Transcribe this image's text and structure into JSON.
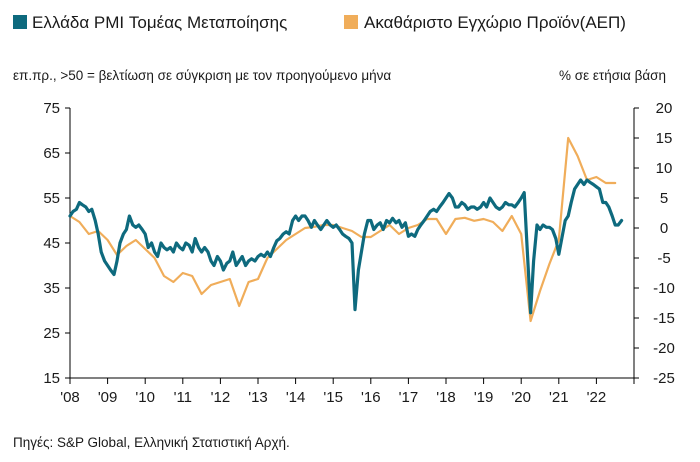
{
  "chart_data": {
    "type": "line",
    "title": "",
    "legend": {
      "placement": "top"
    },
    "grid": false,
    "subtitle_left": "επ.πρ., >50 = βελτίωση σε σύγκριση με τον προηγούμενο μήνα",
    "subtitle_right": "% σε ετήσια βάση",
    "source": "Πηγές: S&P Global, Ελληνική Στατιστική Αρχή.",
    "x_axis": {
      "range": [
        2008.0,
        2023.0
      ],
      "tick_labels": [
        "'08",
        "'09",
        "'10",
        "'11",
        "'12",
        "'13",
        "'14",
        "'15",
        "'16",
        "'17",
        "'18",
        "'19",
        "'20",
        "'21",
        "'22"
      ]
    },
    "y_left": {
      "range": [
        15,
        75
      ],
      "ticks": [
        "75",
        "65",
        "55",
        "45",
        "35",
        "25",
        "15"
      ]
    },
    "y_right": {
      "range": [
        -25,
        20
      ],
      "ticks": [
        "20",
        "15",
        "10",
        "5",
        "0",
        "-5",
        "-10",
        "-15",
        "-20",
        "-25"
      ]
    },
    "series": [
      {
        "name": "Ελλάδα PMI Τομέας Μεταποίησης",
        "axis": "left",
        "color": "#0e6a7e",
        "points": [
          [
            2008.0,
            51
          ],
          [
            2008.08,
            52
          ],
          [
            2008.17,
            52.5
          ],
          [
            2008.25,
            54
          ],
          [
            2008.33,
            53.5
          ],
          [
            2008.42,
            53
          ],
          [
            2008.5,
            52
          ],
          [
            2008.58,
            52.5
          ],
          [
            2008.67,
            50
          ],
          [
            2008.75,
            47
          ],
          [
            2008.83,
            43
          ],
          [
            2008.92,
            41
          ],
          [
            2009.0,
            40
          ],
          [
            2009.08,
            39
          ],
          [
            2009.17,
            38
          ],
          [
            2009.25,
            41
          ],
          [
            2009.33,
            45
          ],
          [
            2009.42,
            47
          ],
          [
            2009.5,
            48
          ],
          [
            2009.58,
            51
          ],
          [
            2009.67,
            49
          ],
          [
            2009.75,
            48.5
          ],
          [
            2009.83,
            49
          ],
          [
            2009.92,
            48
          ],
          [
            2010.0,
            47
          ],
          [
            2010.08,
            44
          ],
          [
            2010.17,
            45
          ],
          [
            2010.25,
            43
          ],
          [
            2010.33,
            42
          ],
          [
            2010.42,
            45
          ],
          [
            2010.5,
            44
          ],
          [
            2010.58,
            43.5
          ],
          [
            2010.67,
            44
          ],
          [
            2010.75,
            43
          ],
          [
            2010.83,
            45
          ],
          [
            2010.92,
            44
          ],
          [
            2011.0,
            43.5
          ],
          [
            2011.08,
            45
          ],
          [
            2011.17,
            44.5
          ],
          [
            2011.25,
            43
          ],
          [
            2011.33,
            46
          ],
          [
            2011.42,
            44
          ],
          [
            2011.5,
            43
          ],
          [
            2011.58,
            44
          ],
          [
            2011.67,
            43
          ],
          [
            2011.75,
            41
          ],
          [
            2011.83,
            40
          ],
          [
            2011.92,
            42
          ],
          [
            2012.0,
            41
          ],
          [
            2012.08,
            39
          ],
          [
            2012.17,
            40.5
          ],
          [
            2012.25,
            41
          ],
          [
            2012.33,
            43
          ],
          [
            2012.42,
            40
          ],
          [
            2012.5,
            41
          ],
          [
            2012.58,
            42
          ],
          [
            2012.67,
            40
          ],
          [
            2012.75,
            41
          ],
          [
            2012.83,
            41.5
          ],
          [
            2012.92,
            41
          ],
          [
            2013.0,
            42
          ],
          [
            2013.08,
            42.5
          ],
          [
            2013.17,
            42
          ],
          [
            2013.25,
            43
          ],
          [
            2013.33,
            42
          ],
          [
            2013.42,
            44
          ],
          [
            2013.5,
            45.5
          ],
          [
            2013.58,
            46
          ],
          [
            2013.67,
            47
          ],
          [
            2013.75,
            47.5
          ],
          [
            2013.83,
            47
          ],
          [
            2013.92,
            50
          ],
          [
            2014.0,
            51
          ],
          [
            2014.08,
            50
          ],
          [
            2014.17,
            51
          ],
          [
            2014.25,
            51
          ],
          [
            2014.33,
            50
          ],
          [
            2014.42,
            48.5
          ],
          [
            2014.5,
            50
          ],
          [
            2014.58,
            49
          ],
          [
            2014.67,
            48
          ],
          [
            2014.75,
            49
          ],
          [
            2014.83,
            50
          ],
          [
            2014.92,
            49
          ],
          [
            2015.0,
            48.5
          ],
          [
            2015.08,
            49
          ],
          [
            2015.17,
            48
          ],
          [
            2015.25,
            47
          ],
          [
            2015.33,
            46.5
          ],
          [
            2015.42,
            46
          ],
          [
            2015.5,
            45
          ],
          [
            2015.58,
            30.2
          ],
          [
            2015.67,
            39
          ],
          [
            2015.75,
            43
          ],
          [
            2015.83,
            47
          ],
          [
            2015.92,
            50
          ],
          [
            2016.0,
            50
          ],
          [
            2016.08,
            48
          ],
          [
            2016.17,
            49
          ],
          [
            2016.25,
            49.5
          ],
          [
            2016.33,
            48
          ],
          [
            2016.42,
            50
          ],
          [
            2016.5,
            49.5
          ],
          [
            2016.58,
            50.5
          ],
          [
            2016.67,
            49.5
          ],
          [
            2016.75,
            50
          ],
          [
            2016.83,
            48.5
          ],
          [
            2016.92,
            49.5
          ],
          [
            2017.0,
            46.5
          ],
          [
            2017.08,
            47
          ],
          [
            2017.17,
            46.5
          ],
          [
            2017.25,
            48
          ],
          [
            2017.33,
            49
          ],
          [
            2017.42,
            50
          ],
          [
            2017.5,
            51
          ],
          [
            2017.58,
            52
          ],
          [
            2017.67,
            52.5
          ],
          [
            2017.75,
            52
          ],
          [
            2017.83,
            53
          ],
          [
            2017.92,
            54
          ],
          [
            2018.0,
            55
          ],
          [
            2018.08,
            56
          ],
          [
            2018.17,
            55
          ],
          [
            2018.25,
            53
          ],
          [
            2018.33,
            53
          ],
          [
            2018.42,
            54
          ],
          [
            2018.5,
            53.5
          ],
          [
            2018.58,
            52.5
          ],
          [
            2018.67,
            53
          ],
          [
            2018.75,
            53
          ],
          [
            2018.83,
            52.5
          ],
          [
            2018.92,
            53
          ],
          [
            2019.0,
            54
          ],
          [
            2019.08,
            53
          ],
          [
            2019.17,
            55
          ],
          [
            2019.25,
            54
          ],
          [
            2019.33,
            53
          ],
          [
            2019.42,
            52.5
          ],
          [
            2019.5,
            53
          ],
          [
            2019.58,
            54
          ],
          [
            2019.67,
            53.5
          ],
          [
            2019.75,
            53.5
          ],
          [
            2019.83,
            53
          ],
          [
            2019.92,
            54
          ],
          [
            2020.0,
            55
          ],
          [
            2020.08,
            56.2
          ],
          [
            2020.17,
            42
          ],
          [
            2020.25,
            29.5
          ],
          [
            2020.33,
            41
          ],
          [
            2020.42,
            49
          ],
          [
            2020.5,
            48
          ],
          [
            2020.58,
            49
          ],
          [
            2020.67,
            48.5
          ],
          [
            2020.75,
            48.5
          ],
          [
            2020.83,
            48
          ],
          [
            2020.92,
            46
          ],
          [
            2021.0,
            42.5
          ],
          [
            2021.08,
            46
          ],
          [
            2021.17,
            50
          ],
          [
            2021.25,
            51
          ],
          [
            2021.33,
            54
          ],
          [
            2021.42,
            57
          ],
          [
            2021.5,
            58
          ],
          [
            2021.58,
            59
          ],
          [
            2021.67,
            58
          ],
          [
            2021.75,
            59
          ],
          [
            2021.83,
            58.5
          ],
          [
            2021.92,
            58
          ],
          [
            2022.0,
            57.5
          ],
          [
            2022.08,
            57
          ],
          [
            2022.17,
            54
          ],
          [
            2022.25,
            54
          ],
          [
            2022.33,
            53
          ],
          [
            2022.42,
            51
          ],
          [
            2022.5,
            49
          ],
          [
            2022.58,
            49
          ],
          [
            2022.67,
            50
          ]
        ]
      },
      {
        "name": "Ακαθάριστο Εγχώριο Προϊόν(ΑΕΠ)",
        "axis": "right",
        "color": "#f0ad5a",
        "points": [
          [
            2008.0,
            2
          ],
          [
            2008.25,
            1
          ],
          [
            2008.5,
            -1
          ],
          [
            2008.75,
            -0.5
          ],
          [
            2009.0,
            -2
          ],
          [
            2009.25,
            -4.5
          ],
          [
            2009.5,
            -3
          ],
          [
            2009.75,
            -2
          ],
          [
            2010.0,
            -3.5
          ],
          [
            2010.25,
            -5
          ],
          [
            2010.5,
            -8
          ],
          [
            2010.75,
            -9
          ],
          [
            2011.0,
            -7.5
          ],
          [
            2011.25,
            -8
          ],
          [
            2011.5,
            -11
          ],
          [
            2011.75,
            -9.5
          ],
          [
            2012.0,
            -9
          ],
          [
            2012.25,
            -8.5
          ],
          [
            2012.5,
            -13
          ],
          [
            2012.75,
            -9
          ],
          [
            2013.0,
            -8.5
          ],
          [
            2013.25,
            -5
          ],
          [
            2013.5,
            -3.5
          ],
          [
            2013.75,
            -2
          ],
          [
            2014.0,
            -1
          ],
          [
            2014.25,
            0
          ],
          [
            2014.5,
            0.2
          ],
          [
            2014.75,
            0.5
          ],
          [
            2015.0,
            0.5
          ],
          [
            2015.25,
            0
          ],
          [
            2015.5,
            -0.5
          ],
          [
            2015.75,
            -1.5
          ],
          [
            2016.0,
            -1.5
          ],
          [
            2016.25,
            -0.5
          ],
          [
            2016.5,
            0.5
          ],
          [
            2016.75,
            -1
          ],
          [
            2017.0,
            0
          ],
          [
            2017.25,
            0.5
          ],
          [
            2017.5,
            1.5
          ],
          [
            2017.75,
            1.5
          ],
          [
            2018.0,
            -1
          ],
          [
            2018.25,
            1.5
          ],
          [
            2018.5,
            1.7
          ],
          [
            2018.75,
            1.2
          ],
          [
            2019.0,
            1.5
          ],
          [
            2019.25,
            1
          ],
          [
            2019.5,
            -0.5
          ],
          [
            2019.75,
            2
          ],
          [
            2020.0,
            -1
          ],
          [
            2020.25,
            -15.5
          ],
          [
            2020.5,
            -10.5
          ],
          [
            2020.75,
            -6
          ],
          [
            2021.0,
            -2
          ],
          [
            2021.25,
            15
          ],
          [
            2021.5,
            12
          ],
          [
            2021.75,
            8
          ],
          [
            2022.0,
            8.5
          ],
          [
            2022.25,
            7.5
          ],
          [
            2022.5,
            7.5
          ]
        ]
      }
    ]
  }
}
